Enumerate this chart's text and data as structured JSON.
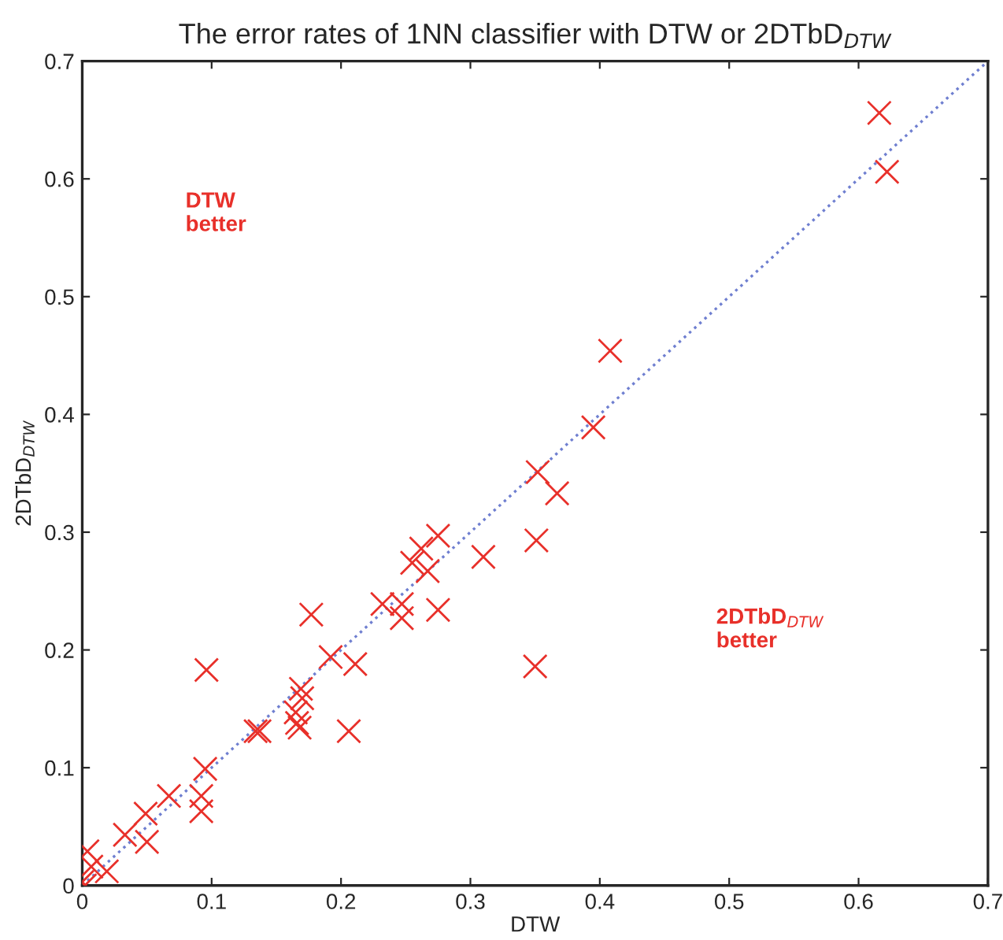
{
  "chart_data": {
    "type": "scatter",
    "title": "The error rates of 1NN classifier with DTW or 2DTbD$_{DTW}$",
    "xlabel": "DTW",
    "ylabel": "2DTbD$_{DTW}$",
    "series": [
      {
        "color": "#e8302a",
        "marker": "cross",
        "x": [
          0.616,
          0.622,
          0.408,
          0.395,
          0.352,
          0.367,
          0.351,
          0.35,
          0.31,
          0.275,
          0.262,
          0.255,
          0.267,
          0.275,
          0.232,
          0.247,
          0.247,
          0.177,
          0.192,
          0.211,
          0.206,
          0.096,
          0.169,
          0.17,
          0.165,
          0.166,
          0.168,
          0.134,
          0.137,
          0.095,
          0.092,
          0.092,
          0.067,
          0.049,
          0.05,
          0.033,
          0.004,
          0.019,
          0.007,
          0.0,
          0.002
        ],
        "values": [
          0.656,
          0.606,
          0.454,
          0.389,
          0.351,
          0.333,
          0.293,
          0.186,
          0.279,
          0.297,
          0.286,
          0.274,
          0.267,
          0.234,
          0.239,
          0.239,
          0.227,
          0.23,
          0.194,
          0.188,
          0.131,
          0.183,
          0.167,
          0.159,
          0.147,
          0.138,
          0.134,
          0.131,
          0.131,
          0.099,
          0.076,
          0.063,
          0.076,
          0.061,
          0.037,
          0.043,
          0.029,
          0.012,
          0.016,
          0.003,
          0.0
        ]
      },
      {
        "type": "line",
        "color": "#6f7fd0",
        "line_style": "dotted",
        "marker": "none",
        "x": [
          0,
          0.7
        ],
        "values": [
          0,
          0.7
        ]
      }
    ],
    "xlim": [
      0,
      0.7
    ],
    "ylim": [
      0,
      0.7
    ],
    "xticks": [
      0,
      0.1,
      0.2,
      0.3,
      0.4,
      0.5,
      0.6,
      0.7
    ],
    "yticks": [
      0,
      0.1,
      0.2,
      0.3,
      0.4,
      0.5,
      0.6,
      0.7
    ],
    "grid": false,
    "legend": false,
    "annotations": [
      "DTW\nbetter",
      "2DTbD$_{DTW}$\nbetter"
    ]
  }
}
